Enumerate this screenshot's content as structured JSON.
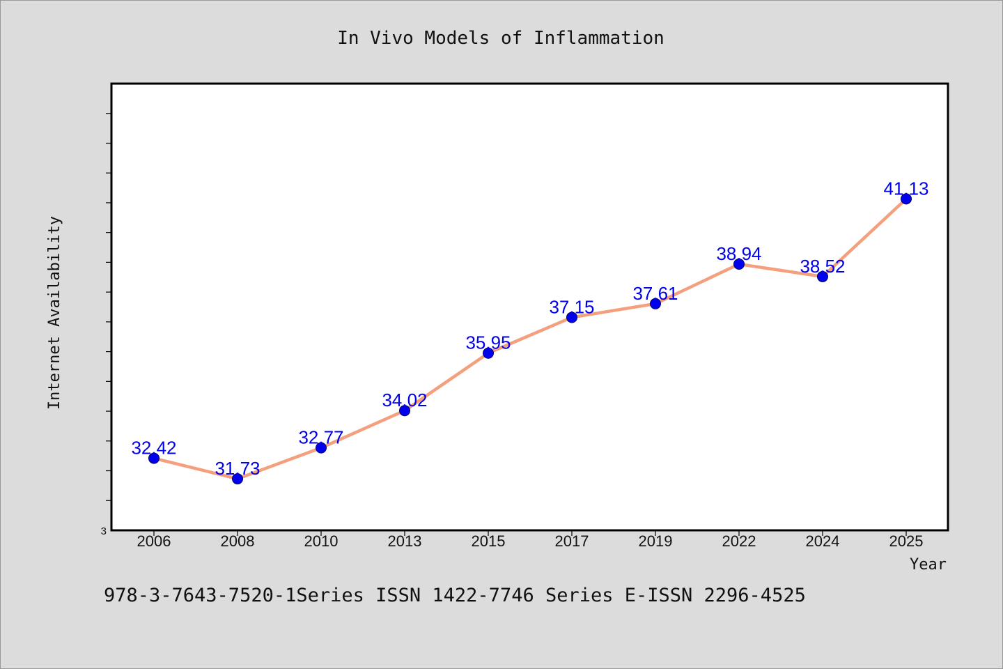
{
  "chart_data": {
    "type": "line",
    "title": "In Vivo Models of Inflammation",
    "xlabel": "Year",
    "ylabel": "Internet Availability",
    "categories": [
      "2006",
      "2008",
      "2010",
      "2013",
      "2015",
      "2017",
      "2019",
      "2022",
      "2024",
      "2025"
    ],
    "series": [
      {
        "values": [
          32.42,
          31.73,
          32.77,
          34.02,
          35.95,
          37.15,
          37.61,
          38.94,
          38.52,
          41.13
        ]
      }
    ],
    "data_labels": [
      "32.42",
      "31.73",
      "32.77",
      "34.02",
      "35.95",
      "37.15",
      "37.61",
      "38.94",
      "38.52",
      "41.13"
    ],
    "y_tick_label": "3",
    "ylim": [
      30.0,
      45.0
    ],
    "y_minor_tick_step": 1,
    "grid": false,
    "legend": "none",
    "colors": {
      "line": "#f4a07e",
      "marker": "#0000ee",
      "marker_edge": "#000066",
      "label": "#0000ee",
      "background": "#dcdcdc",
      "plot_background": "#ffffff"
    }
  },
  "footer": {
    "text": "978-3-7643-7520-1Series ISSN 1422-7746 Series E-ISSN 2296-4525"
  }
}
